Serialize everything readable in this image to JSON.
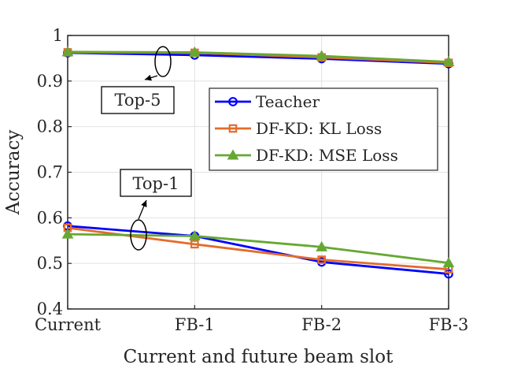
{
  "chart_data": {
    "type": "line",
    "title": "",
    "xlabel": "Current and future beam slot",
    "ylabel": "Accuracy",
    "categories": [
      "Current",
      "FB-1",
      "FB-2",
      "FB-3"
    ],
    "ylim": [
      0.4,
      1.0
    ],
    "yticks": [
      0.4,
      0.5,
      0.6,
      0.7,
      0.8,
      0.9,
      1.0
    ],
    "ytick_labels": [
      "0.4",
      "0.5",
      "0.6",
      "0.7",
      "0.8",
      "0.9",
      "1"
    ],
    "grid": true,
    "legend_position": "top-right",
    "series": [
      {
        "name": "Teacher",
        "color": "#0000ff",
        "marker": "circle",
        "top5": [
          0.962,
          0.957,
          0.949,
          0.938
        ],
        "top1": [
          0.582,
          0.56,
          0.503,
          0.477
        ]
      },
      {
        "name": "DF-KD: KL Loss",
        "color": "#e36c2b",
        "marker": "square",
        "top5": [
          0.963,
          0.962,
          0.952,
          0.94
        ],
        "top1": [
          0.578,
          0.542,
          0.508,
          0.487
        ]
      },
      {
        "name": "DF-KD: MSE Loss",
        "color": "#66a832",
        "marker": "triangle",
        "top5": [
          0.964,
          0.963,
          0.955,
          0.942
        ],
        "top1": [
          0.564,
          0.56,
          0.536,
          0.501
        ]
      }
    ],
    "annotations": [
      {
        "text": "Top-5",
        "group": "top5"
      },
      {
        "text": "Top-1",
        "group": "top1"
      }
    ]
  }
}
